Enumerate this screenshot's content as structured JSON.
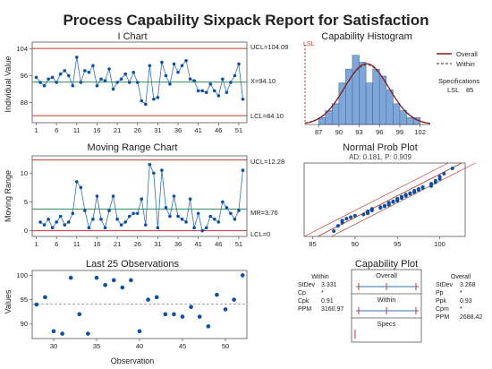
{
  "title": "Process Capability Sixpack Report for Satisfaction",
  "colors": {
    "series": "#2f6fb4",
    "point": "#0d4fa3",
    "limit": "#c0392b",
    "center": "#2e8b57",
    "bar": "#7ea6d8",
    "bar_edge": "#4a6f9e",
    "overall_curve": "#8b1a1a",
    "within_curve": "#555555",
    "axis": "#333333"
  },
  "chart_data": [
    {
      "id": "i-chart",
      "type": "line",
      "title": "I Chart",
      "ylabel": "Individual Value",
      "ylim": [
        82,
        106
      ],
      "yticks": [
        88,
        96,
        104
      ],
      "xlim": [
        0,
        53
      ],
      "xticks": [
        1,
        6,
        11,
        16,
        21,
        26,
        31,
        36,
        41,
        46,
        51
      ],
      "x": [
        1,
        2,
        3,
        4,
        5,
        6,
        7,
        8,
        9,
        10,
        11,
        12,
        13,
        14,
        15,
        16,
        17,
        18,
        19,
        20,
        21,
        22,
        23,
        24,
        25,
        26,
        27,
        28,
        29,
        30,
        31,
        32,
        33,
        34,
        35,
        36,
        37,
        38,
        39,
        40,
        41,
        42,
        43,
        44,
        45,
        46,
        47,
        48,
        49,
        50,
        51,
        52
      ],
      "values": [
        95.5,
        94,
        93,
        95,
        95.5,
        94,
        96.5,
        97.5,
        96,
        93,
        101.5,
        94,
        97.5,
        97,
        99,
        93,
        95,
        94.5,
        98,
        92,
        94,
        95,
        96.5,
        94,
        97,
        94,
        88.5,
        87.5,
        99,
        89,
        89.5,
        100,
        96,
        93.5,
        99.5,
        97,
        99,
        100.5,
        95,
        94.5,
        91.5,
        91.5,
        91,
        93.5,
        91.5,
        90,
        95,
        91,
        94,
        96,
        99.5,
        89
      ],
      "ucl": 104.09,
      "center": 94.1,
      "lcl": 84.1,
      "labels": {
        "ucl": "UCL=104.09",
        "center": "X=94.10",
        "lcl": "LCL=84.10"
      }
    },
    {
      "id": "mr-chart",
      "type": "line",
      "title": "Moving Range Chart",
      "ylabel": "Moving Range",
      "ylim": [
        -1,
        13
      ],
      "yticks": [
        0,
        5,
        10
      ],
      "xlim": [
        0,
        53
      ],
      "xticks": [
        1,
        6,
        11,
        16,
        21,
        26,
        31,
        36,
        41,
        46,
        51
      ],
      "x": [
        2,
        3,
        4,
        5,
        6,
        7,
        8,
        9,
        10,
        11,
        12,
        13,
        14,
        15,
        16,
        17,
        18,
        19,
        20,
        21,
        22,
        23,
        24,
        25,
        26,
        27,
        28,
        29,
        30,
        31,
        32,
        33,
        34,
        35,
        36,
        37,
        38,
        39,
        40,
        41,
        42,
        43,
        44,
        45,
        46,
        47,
        48,
        49,
        50,
        51,
        52
      ],
      "values": [
        1.5,
        1,
        2,
        0.5,
        1.5,
        2.5,
        1,
        1.5,
        3,
        8.5,
        7.5,
        3.5,
        0.5,
        2,
        6,
        2,
        0.5,
        3.5,
        6,
        2,
        1,
        1.5,
        2.5,
        3,
        3,
        5.5,
        1,
        11.5,
        10,
        0.5,
        10.5,
        4,
        2.5,
        6,
        2.5,
        2,
        1.5,
        5.5,
        0.5,
        3,
        0,
        0.5,
        2.5,
        2,
        1.5,
        5,
        4,
        3,
        2,
        3.5,
        10.5
      ],
      "ucl": 12.28,
      "center": 3.76,
      "lcl": 0,
      "labels": {
        "ucl": "UCL=12.28",
        "center": "MR=3.76",
        "lcl": "LCL=0"
      }
    },
    {
      "id": "last25",
      "type": "scatter",
      "title": "Last 25 Observations",
      "xlabel": "Observation",
      "ylabel": "Values",
      "ylim": [
        87,
        101
      ],
      "yticks": [
        90,
        95,
        100
      ],
      "xlim": [
        27.5,
        52.5
      ],
      "xticks": [
        30,
        35,
        40,
        45,
        50
      ],
      "x": [
        28,
        29,
        30,
        31,
        32,
        33,
        34,
        35,
        36,
        37,
        38,
        39,
        40,
        41,
        42,
        43,
        44,
        45,
        46,
        47,
        48,
        49,
        50,
        51,
        52
      ],
      "values": [
        94,
        95.5,
        88.5,
        88,
        99.5,
        92,
        88,
        99.5,
        98,
        99,
        97.5,
        99,
        88.5,
        95,
        95.5,
        92,
        92,
        91.5,
        93.5,
        91.5,
        89.5,
        96,
        93,
        95,
        100
      ],
      "reference": 94.1
    },
    {
      "id": "histogram",
      "type": "bar",
      "title": "Capability Histogram",
      "xlim": [
        85,
        103.5
      ],
      "xticks": [
        87,
        90,
        93,
        96,
        99,
        102
      ],
      "bin_width": 1,
      "bin_starts": [
        87,
        88,
        89,
        90,
        91,
        92,
        93,
        94,
        95,
        96,
        97,
        98,
        99,
        100,
        101
      ],
      "values": [
        1,
        2,
        3,
        6,
        8,
        10,
        9,
        6,
        8,
        7,
        5,
        3,
        2,
        1,
        1
      ],
      "ylim": [
        0,
        11
      ],
      "mean": 94.1,
      "lsl": 85,
      "lsl_label": "LSL",
      "legend": [
        "Overall",
        "Within"
      ],
      "spec_title": "Specifications",
      "spec_key": "LSL",
      "spec_value": "85"
    },
    {
      "id": "normal-plot",
      "type": "scatter",
      "title": "Normal Prob Plot",
      "subtitle": "AD: 0.181, P: 0.909",
      "xlim": [
        84,
        103
      ],
      "xticks": [
        85,
        90,
        95,
        100
      ],
      "ylim": [
        0,
        1
      ],
      "values": [
        87.5,
        88,
        88.5,
        88.5,
        89,
        89.5,
        90,
        91,
        91.5,
        91.5,
        91.5,
        92,
        92,
        92,
        93,
        93,
        93.5,
        93.5,
        94,
        94,
        94,
        94,
        94.5,
        94.5,
        95,
        95,
        95,
        95,
        95.5,
        95.5,
        95.5,
        96,
        96,
        96,
        96.5,
        96.5,
        97,
        97,
        97,
        97.5,
        97.5,
        98,
        98,
        99,
        99,
        99,
        99.5,
        99.5,
        100,
        100,
        100.5,
        101.5
      ]
    }
  ],
  "capability": {
    "title": "Capability Plot",
    "within": {
      "heading": "Within",
      "rows": [
        {
          "label": "StDev",
          "value": "3.331"
        },
        {
          "label": "Cp",
          "value": "*"
        },
        {
          "label": "Cpk",
          "value": "0.91"
        },
        {
          "label": "PPM",
          "value": "3160.97"
        }
      ]
    },
    "overall": {
      "heading": "Overall",
      "rows": [
        {
          "label": "StDev",
          "value": "3.268"
        },
        {
          "label": "Pp",
          "value": "*"
        },
        {
          "label": "Ppk",
          "value": "0.93"
        },
        {
          "label": "Cpm",
          "value": "*"
        },
        {
          "label": "PPM",
          "value": "2688.42"
        }
      ]
    },
    "bands": [
      {
        "name": "overall",
        "label": "Overall"
      },
      {
        "name": "within",
        "label": "Within"
      },
      {
        "name": "specs",
        "label": "Specs"
      }
    ]
  }
}
